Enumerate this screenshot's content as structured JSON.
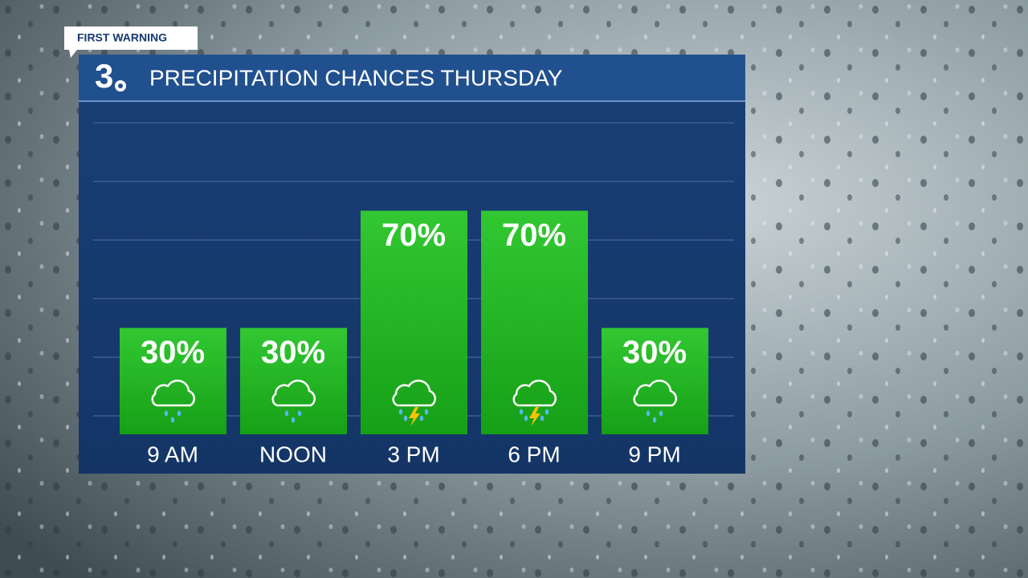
{
  "badge": "FIRST WARNING",
  "logo": "3",
  "chart_data": {
    "type": "bar",
    "title": "PRECIPITATION CHANCES THURSDAY",
    "categories": [
      "9 AM",
      "NOON",
      "3 PM",
      "6 PM",
      "9 PM"
    ],
    "values": [
      30,
      30,
      70,
      70,
      30
    ],
    "value_labels": [
      "30%",
      "30%",
      "70%",
      "70%",
      "30%"
    ],
    "icons": [
      "rain",
      "rain",
      "storm",
      "storm",
      "rain"
    ],
    "color": "#22b422",
    "ylim": [
      0,
      100
    ],
    "yticks": [
      0,
      20,
      40,
      60,
      80,
      100
    ],
    "grid": true
  }
}
